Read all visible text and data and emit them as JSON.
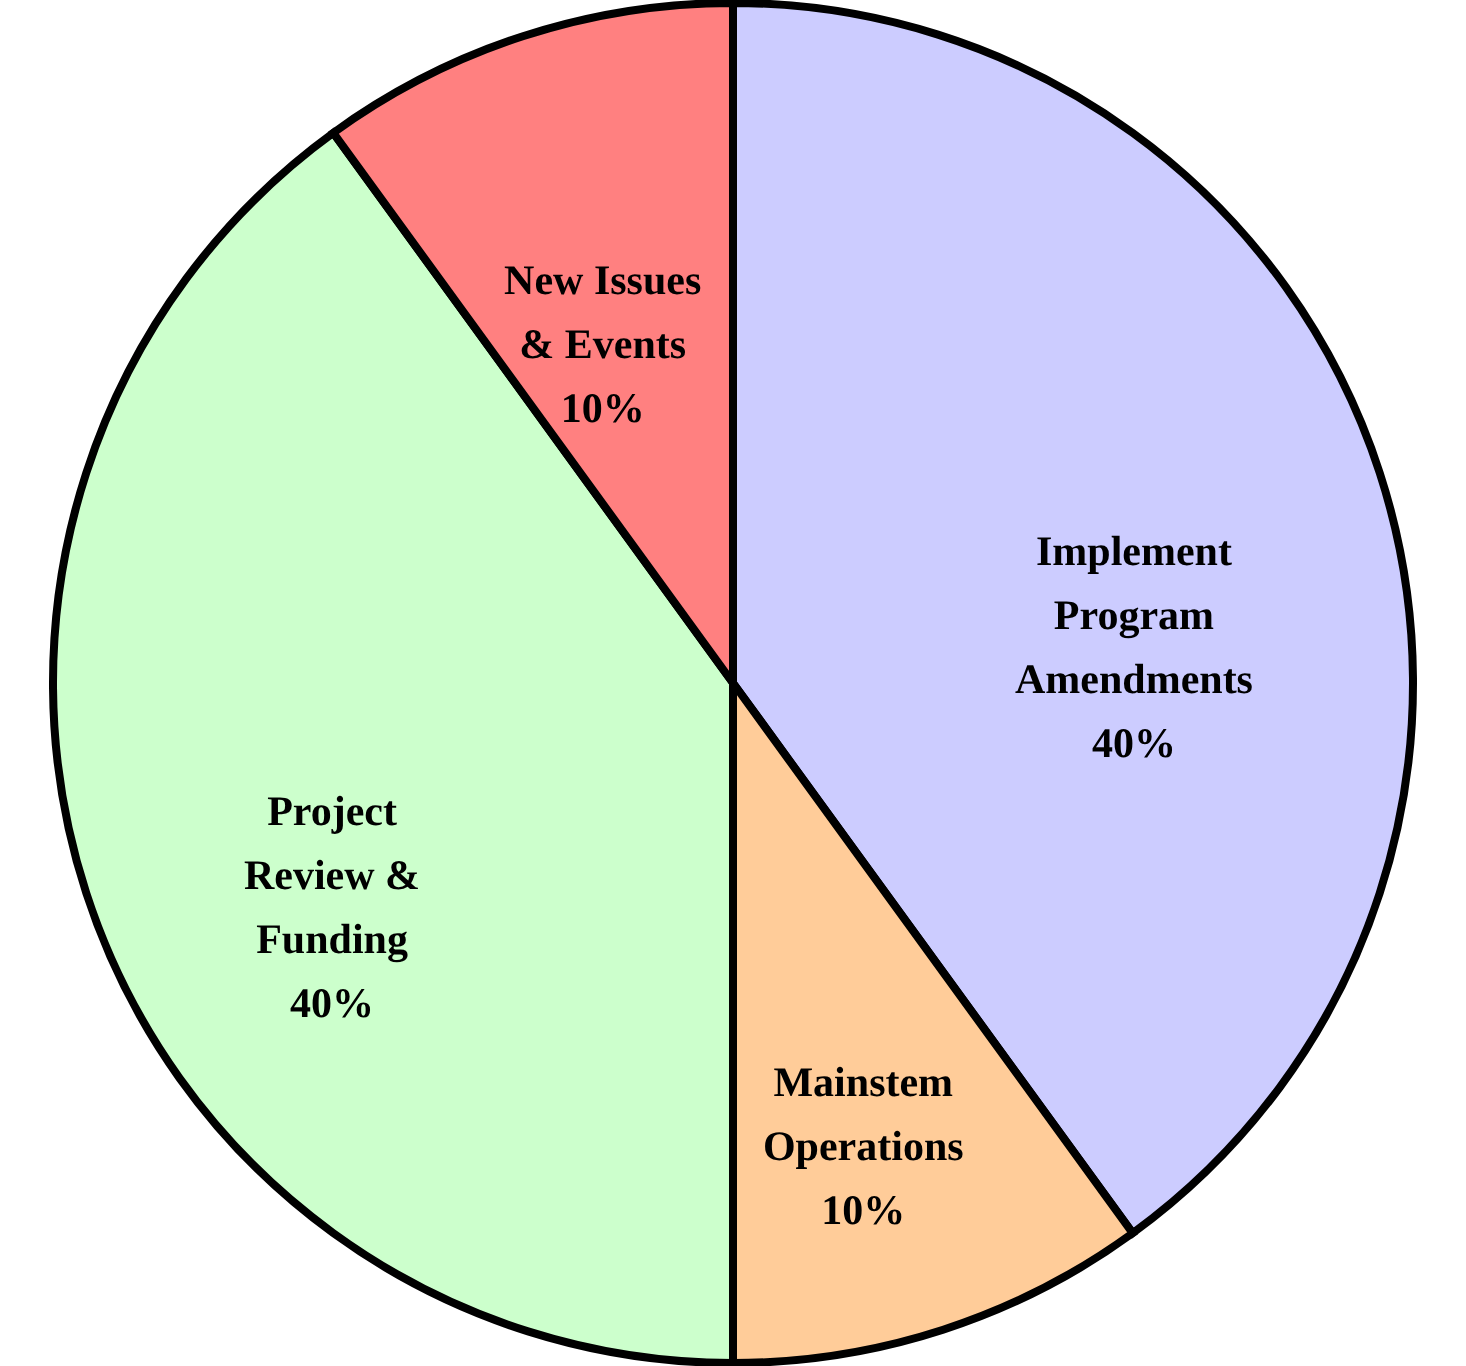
{
  "chart_data": {
    "type": "pie",
    "categories": [
      "Implement Program Amendments",
      "Mainstem Operations",
      "Project Review & Funding",
      "New Issues & Events"
    ],
    "values": [
      40,
      10,
      40,
      10
    ],
    "colors": [
      "#ccccff",
      "#ffcc99",
      "#ccffcc",
      "#ff8080"
    ],
    "value_labels": [
      "40%",
      "10%",
      "40%",
      "10%"
    ],
    "legend": false
  }
}
